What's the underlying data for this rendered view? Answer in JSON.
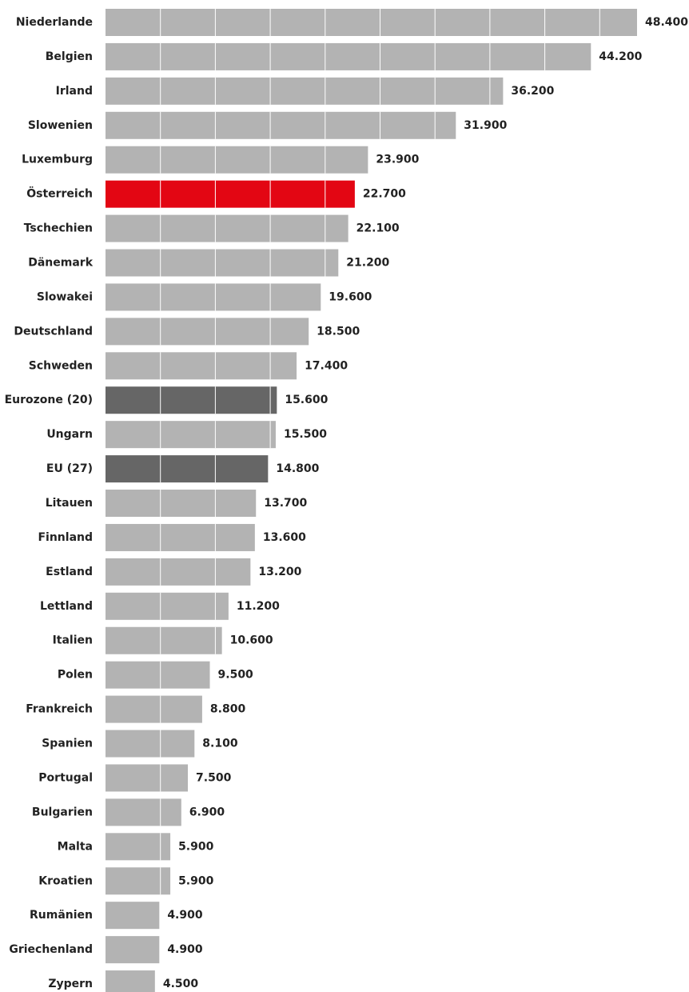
{
  "chart_data": {
    "type": "bar",
    "orientation": "horizontal",
    "categories": [
      "Niederlande",
      "Belgien",
      "Irland",
      "Slowenien",
      "Luxemburg",
      "Österreich",
      "Tschechien",
      "Dänemark",
      "Slowakei",
      "Deutschland",
      "Schweden",
      "Eurozone (20)",
      "Ungarn",
      "EU (27)",
      "Litauen",
      "Finnland",
      "Estland",
      "Lettland",
      "Italien",
      "Polen",
      "Frankreich",
      "Spanien",
      "Portugal",
      "Bulgarien",
      "Malta",
      "Kroatien",
      "Rumänien",
      "Griechenland",
      "Zypern"
    ],
    "values": [
      48400,
      44200,
      36200,
      31900,
      23900,
      22700,
      22100,
      21200,
      19600,
      18500,
      17400,
      15600,
      15500,
      14800,
      13700,
      13600,
      13200,
      11200,
      10600,
      9500,
      8800,
      8100,
      7500,
      6900,
      5900,
      5900,
      4900,
      4900,
      4500
    ],
    "value_labels": [
      "48.400",
      "44.200",
      "36.200",
      "31.900",
      "23.900",
      "22.700",
      "22.100",
      "21.200",
      "19.600",
      "18.500",
      "17.400",
      "15.600",
      "15.500",
      "14.800",
      "13.700",
      "13.600",
      "13.200",
      "11.200",
      "10.600",
      "9.500",
      "8.800",
      "8.100",
      "7.500",
      "6.900",
      "5.900",
      "5.900",
      "4.900",
      "4.900",
      "4.500"
    ],
    "xlim": [
      0,
      48400
    ],
    "gridlines": [
      5000,
      10000,
      15000,
      20000,
      25000,
      30000,
      35000,
      40000,
      45000
    ],
    "grid": true,
    "legend": "none",
    "colors": {
      "default": "#b3b3b3",
      "highlight": "#e30613",
      "aggregate": "#666666",
      "grid": "#ffffff",
      "text": "#222222"
    },
    "highlight_categories": [
      "Österreich"
    ],
    "aggregate_categories": [
      "Eurozone (20)",
      "EU (27)"
    ]
  }
}
